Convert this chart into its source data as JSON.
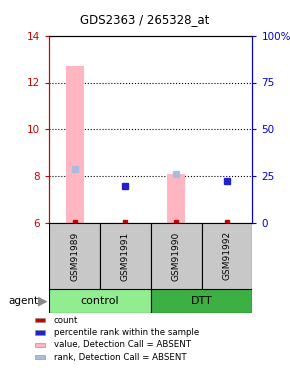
{
  "title": "GDS2363 / 265328_at",
  "samples": [
    "GSM91989",
    "GSM91991",
    "GSM91990",
    "GSM91992"
  ],
  "group_labels": [
    "control",
    "DTT"
  ],
  "group_colors": [
    "#90EE90",
    "#3CB043"
  ],
  "ylim_left": [
    6,
    14
  ],
  "ylim_right": [
    0,
    100
  ],
  "yticks_left": [
    6,
    8,
    10,
    12,
    14
  ],
  "yticks_right": [
    0,
    25,
    50,
    75,
    100
  ],
  "ytick_labels_right": [
    "0",
    "25",
    "50",
    "75",
    "100%"
  ],
  "bar_values_absent": [
    12.7,
    null,
    8.1,
    null
  ],
  "bar_bottoms_absent": [
    6.0,
    null,
    6.0,
    null
  ],
  "rank_absent": [
    8.3,
    null,
    8.1,
    null
  ],
  "rank_present": [
    null,
    7.6,
    null,
    7.8
  ],
  "count_values": [
    6.05,
    6.05,
    6.05,
    6.05
  ],
  "bar_color_absent": "#FFB6C1",
  "rank_absent_color": "#AABBDD",
  "rank_present_color": "#2222CC",
  "count_color": "#CC0000",
  "sample_box_color": "#C8C8C8",
  "left_axis_color": "#CC0000",
  "right_axis_color": "#0000CC",
  "bar_width": 0.35,
  "dotted_lines": [
    8,
    10,
    12
  ],
  "legend_items": [
    [
      "#CC0000",
      "count"
    ],
    [
      "#2222CC",
      "percentile rank within the sample"
    ],
    [
      "#FFB6C1",
      "value, Detection Call = ABSENT"
    ],
    [
      "#AABBDD",
      "rank, Detection Call = ABSENT"
    ]
  ]
}
